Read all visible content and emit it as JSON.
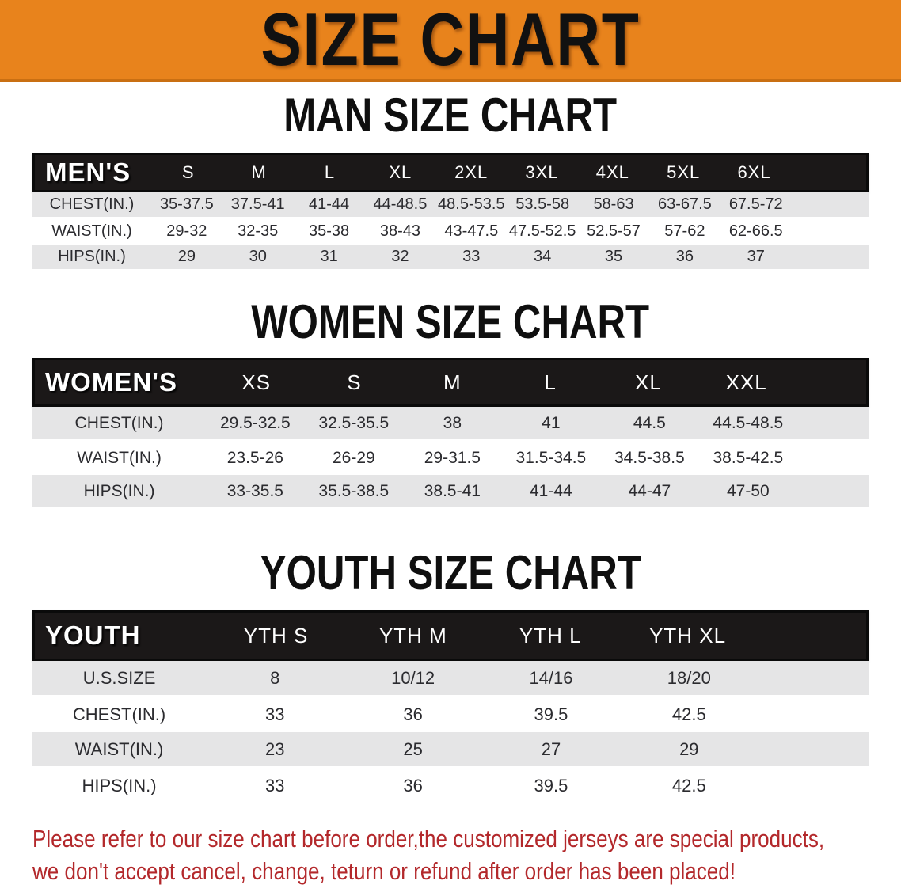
{
  "banner": {
    "title": "SIZE CHART"
  },
  "sections": [
    {
      "id": "men",
      "heading": "MAN SIZE CHART",
      "table": {
        "label": "MEN'S",
        "columns": [
          "S",
          "M",
          "L",
          "XL",
          "2XL",
          "3XL",
          "4XL",
          "5XL",
          "6XL"
        ],
        "rows": [
          {
            "label": "CHEST(IN.)",
            "values": [
              "35-37.5",
              "37.5-41",
              "41-44",
              "44-48.5",
              "48.5-53.5",
              "53.5-58",
              "58-63",
              "63-67.5",
              "67.5-72"
            ]
          },
          {
            "label": "WAIST(IN.)",
            "values": [
              "29-32",
              "32-35",
              "35-38",
              "38-43",
              "43-47.5",
              "47.5-52.5",
              "52.5-57",
              "57-62",
              "62-66.5"
            ]
          },
          {
            "label": "HIPS(IN.)",
            "values": [
              "29",
              "30",
              "31",
              "32",
              "33",
              "34",
              "35",
              "36",
              "37"
            ]
          }
        ]
      }
    },
    {
      "id": "women",
      "heading": "WOMEN SIZE CHART",
      "table": {
        "label": "WOMEN'S",
        "columns": [
          "XS",
          "S",
          "M",
          "L",
          "XL",
          "XXL"
        ],
        "rows": [
          {
            "label": "CHEST(IN.)",
            "values": [
              "29.5-32.5",
              "32.5-35.5",
              "38",
              "41",
              "44.5",
              "44.5-48.5"
            ]
          },
          {
            "label": "WAIST(IN.)",
            "values": [
              "23.5-26",
              "26-29",
              "29-31.5",
              "31.5-34.5",
              "34.5-38.5",
              "38.5-42.5"
            ]
          },
          {
            "label": "HIPS(IN.)",
            "values": [
              "33-35.5",
              "35.5-38.5",
              "38.5-41",
              "41-44",
              "44-47",
              "47-50"
            ]
          }
        ]
      }
    },
    {
      "id": "youth",
      "heading": "YOUTH SIZE CHART",
      "table": {
        "label": "YOUTH",
        "columns": [
          "YTH S",
          "YTH M",
          "YTH L",
          "YTH XL"
        ],
        "rows": [
          {
            "label": "U.S.SIZE",
            "values": [
              "8",
              "10/12",
              "14/16",
              "18/20"
            ]
          },
          {
            "label": "CHEST(IN.)",
            "values": [
              "33",
              "36",
              "39.5",
              "42.5"
            ]
          },
          {
            "label": "WAIST(IN.)",
            "values": [
              "23",
              "25",
              "27",
              "29"
            ]
          },
          {
            "label": "HIPS(IN.)",
            "values": [
              "33",
              "36",
              "39.5",
              "42.5"
            ]
          }
        ]
      }
    }
  ],
  "footer": {
    "line1": "Please refer to our size chart before order,the customized jerseys are special products,",
    "line2": "we don't accept cancel, change, teturn or refund after order has been placed!"
  },
  "colors": {
    "banner_bg": "#E8831C",
    "banner_edge": "#C96F12",
    "banner_text": "#111111",
    "header_bar_bg": "#1B1818",
    "header_bar_border": "#0A0A0A",
    "header_text": "#FFFFFF",
    "row_gray": "#E5E5E6",
    "row_white": "#FFFFFF",
    "body_text": "#2B2B2F",
    "heading_text": "#0F0F0F",
    "footer_text": "#B3282B"
  }
}
